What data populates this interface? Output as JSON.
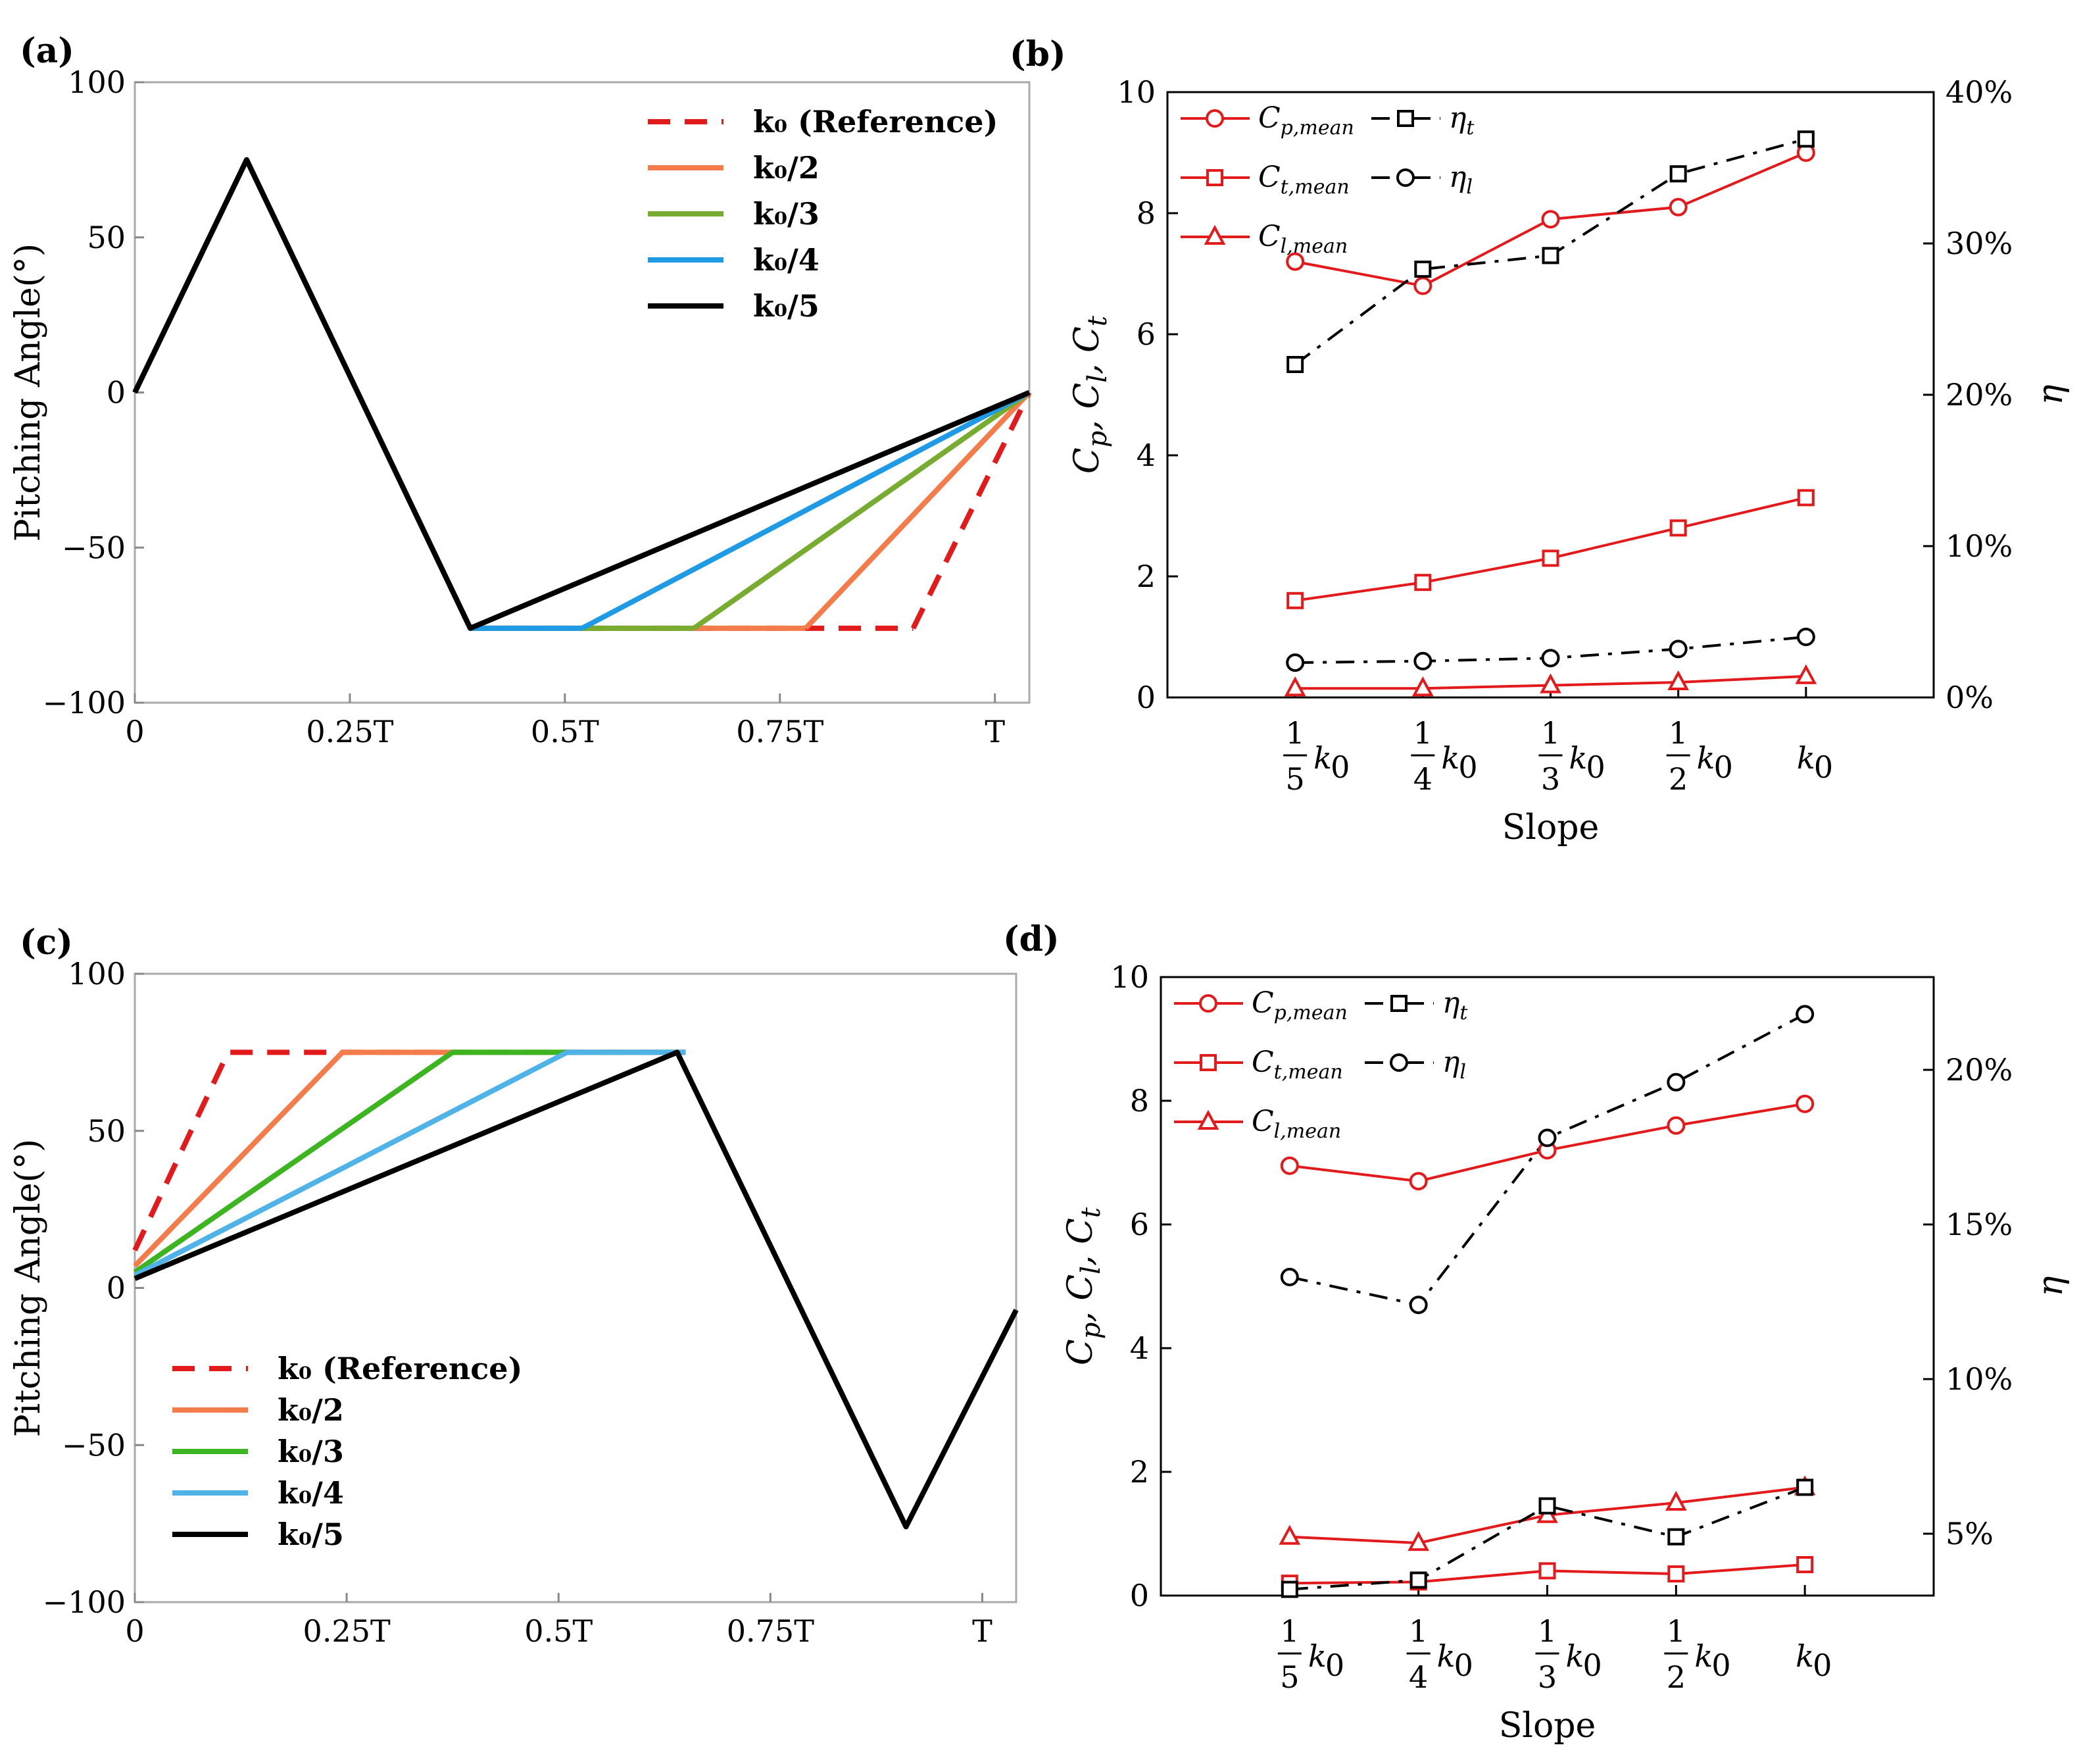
{
  "chart_data": [
    {
      "id": "a",
      "panel_label": "(a)",
      "type": "line",
      "ylabel": "Pitching Angle(°)",
      "xlim": [
        0,
        1.04
      ],
      "ylim": [
        -100,
        100
      ],
      "x_ticks": [
        {
          "v": 0,
          "t": "0"
        },
        {
          "v": 0.25,
          "t": "0.25T"
        },
        {
          "v": 0.5,
          "t": "0.5T"
        },
        {
          "v": 0.75,
          "t": "0.75T"
        },
        {
          "v": 1.0,
          "t": "T"
        }
      ],
      "y_ticks": [
        {
          "v": 100,
          "t": "100"
        },
        {
          "v": 50,
          "t": "50"
        },
        {
          "v": 0,
          "t": "0"
        },
        {
          "v": -50,
          "t": "−50"
        },
        {
          "v": -100,
          "t": "−100"
        }
      ],
      "legend_position": "top-right",
      "series": [
        {
          "name": "k₀ (Reference)",
          "color": "#e31a1c",
          "dash": "dashed",
          "x": [
            0.905,
            1.04
          ],
          "y": [
            -76,
            0
          ]
        },
        {
          "name": "k₀/2",
          "color": "#f47c4a",
          "dash": "solid",
          "x": [
            0.78,
            1.04
          ],
          "y": [
            -76,
            0
          ]
        },
        {
          "name": "k₀/3",
          "color": "#77ac30",
          "dash": "solid",
          "x": [
            0.65,
            1.04
          ],
          "y": [
            -76,
            0
          ]
        },
        {
          "name": "k₀/4",
          "color": "#1f9be6",
          "dash": "solid",
          "x": [
            0.52,
            1.04
          ],
          "y": [
            -76,
            0
          ]
        },
        {
          "name": "k₀/5",
          "color": "#000000",
          "dash": "solid",
          "x": [
            0,
            0.13,
            0.39,
            1.04
          ],
          "y": [
            0,
            75,
            -76,
            0
          ]
        }
      ],
      "extra_segments": [
        {
          "color": "#000000",
          "dash": "solid",
          "x": [
            0,
            0.13,
            0.39
          ],
          "y": [
            0,
            75,
            -76
          ]
        },
        {
          "color": "#e31a1c",
          "dash": "dashed",
          "x": [
            0.39,
            0.905
          ],
          "y": [
            -76,
            -76
          ]
        },
        {
          "color": "#f47c4a",
          "dash": "solid",
          "x": [
            0.39,
            0.78
          ],
          "y": [
            -76,
            -76
          ]
        },
        {
          "color": "#77ac30",
          "dash": "solid",
          "x": [
            0.39,
            0.65
          ],
          "y": [
            -76,
            -76
          ]
        },
        {
          "color": "#1f9be6",
          "dash": "solid",
          "x": [
            0.39,
            0.52
          ],
          "y": [
            -76,
            -76
          ]
        }
      ]
    },
    {
      "id": "b",
      "panel_label": "(b)",
      "type": "line",
      "ylabel": "Cp, Cl, Ct",
      "ylabel_parts": [
        "C",
        "p",
        ", C",
        "l",
        ", C",
        "t"
      ],
      "y2label": "η",
      "xlabel": "Slope",
      "categories": [
        "1/5 k0",
        "1/4 k0",
        "1/3 k0",
        "1/2 k0",
        "k0"
      ],
      "ylim": [
        0,
        10
      ],
      "y_ticks": [
        0,
        2,
        4,
        6,
        8,
        10
      ],
      "y2lim": [
        0,
        40
      ],
      "y2_ticks": [
        {
          "v": 0,
          "t": "0%"
        },
        {
          "v": 10,
          "t": "10%"
        },
        {
          "v": 20,
          "t": "20%"
        },
        {
          "v": 30,
          "t": "30%"
        },
        {
          "v": 40,
          "t": "40%"
        }
      ],
      "legend_position": "top-left",
      "series": [
        {
          "name": "Cp,mean",
          "sym": "C",
          "sub": "p,mean",
          "axis": "left",
          "marker": "circle",
          "color": "#e31a1c",
          "dash": "solid",
          "values": [
            7.2,
            6.8,
            7.9,
            8.1,
            9.0
          ]
        },
        {
          "name": "Ct,mean",
          "sym": "C",
          "sub": "t,mean",
          "axis": "left",
          "marker": "square",
          "color": "#e31a1c",
          "dash": "solid",
          "values": [
            1.6,
            1.9,
            2.3,
            2.8,
            3.3
          ]
        },
        {
          "name": "Cl,mean",
          "sym": "C",
          "sub": "l,mean",
          "axis": "left",
          "marker": "triangle",
          "color": "#e31a1c",
          "dash": "solid",
          "values": [
            0.15,
            0.15,
            0.2,
            0.25,
            0.35
          ]
        },
        {
          "name": "ηt",
          "sym": "η",
          "sub": "t",
          "axis": "right",
          "marker": "square",
          "color": "#000000",
          "dash": "dashdot",
          "values": [
            22,
            28.3,
            29.2,
            34.6,
            36.9
          ]
        },
        {
          "name": "ηl",
          "sym": "η",
          "sub": "l",
          "axis": "right",
          "marker": "circle",
          "color": "#000000",
          "dash": "dashdot",
          "values": [
            2.3,
            2.4,
            2.6,
            3.2,
            4.0
          ]
        }
      ]
    },
    {
      "id": "c",
      "panel_label": "(c)",
      "type": "line",
      "ylabel": "Pitching Angle(°)",
      "xlim": [
        0,
        1.04
      ],
      "ylim": [
        -100,
        100
      ],
      "x_ticks": [
        {
          "v": 0,
          "t": "0"
        },
        {
          "v": 0.25,
          "t": "0.25T"
        },
        {
          "v": 0.5,
          "t": "0.5T"
        },
        {
          "v": 0.75,
          "t": "0.75T"
        },
        {
          "v": 1.0,
          "t": "T"
        }
      ],
      "y_ticks": [
        {
          "v": 100,
          "t": "100"
        },
        {
          "v": 50,
          "t": "50"
        },
        {
          "v": 0,
          "t": "0"
        },
        {
          "v": -50,
          "t": "−50"
        },
        {
          "v": -100,
          "t": "−100"
        }
      ],
      "legend_position": "bottom-left",
      "series": [
        {
          "name": "k₀ (Reference)",
          "color": "#e31a1c",
          "dash": "dashed",
          "x": [
            0,
            0.11,
            0.65
          ],
          "y": [
            12,
            75,
            75
          ]
        },
        {
          "name": "k₀/2",
          "color": "#f47c4a",
          "dash": "solid",
          "x": [
            0,
            0.245,
            0.65
          ],
          "y": [
            7,
            75,
            75
          ]
        },
        {
          "name": "k₀/3",
          "color": "#3cb521",
          "dash": "solid",
          "x": [
            0,
            0.375,
            0.65
          ],
          "y": [
            5,
            75,
            75
          ]
        },
        {
          "name": "k₀/4",
          "color": "#4fb3e8",
          "dash": "solid",
          "x": [
            0,
            0.51,
            0.65
          ],
          "y": [
            4,
            75,
            75
          ]
        },
        {
          "name": "k₀/5",
          "color": "#000000",
          "dash": "solid",
          "x": [
            0,
            0.64,
            0.91,
            1.04
          ],
          "y": [
            3,
            75,
            -76,
            -7
          ]
        }
      ],
      "extra_segments": []
    },
    {
      "id": "d",
      "panel_label": "(d)",
      "type": "line",
      "ylabel": "Cp, Cl, Ct",
      "ylabel_parts": [
        "C",
        "p",
        ", C",
        "l",
        ", C",
        "t"
      ],
      "y2label": "η",
      "xlabel": "Slope",
      "categories": [
        "1/5 k0",
        "1/4 k0",
        "1/3 k0",
        "1/2 k0",
        "k0"
      ],
      "ylim": [
        0,
        10
      ],
      "y_ticks": [
        0,
        2,
        4,
        6,
        8,
        10
      ],
      "y2lim": [
        3,
        23
      ],
      "y2_ticks": [
        {
          "v": 5,
          "t": "5%"
        },
        {
          "v": 10,
          "t": "10%"
        },
        {
          "v": 15,
          "t": "15%"
        },
        {
          "v": 20,
          "t": "20%"
        }
      ],
      "legend_position": "top-left",
      "series": [
        {
          "name": "Cp,mean",
          "sym": "C",
          "sub": "p,mean",
          "axis": "left",
          "marker": "circle",
          "color": "#e31a1c",
          "dash": "solid",
          "values": [
            6.95,
            6.7,
            7.2,
            7.6,
            7.95
          ]
        },
        {
          "name": "Ct,mean",
          "sym": "C",
          "sub": "t,mean",
          "axis": "left",
          "marker": "square",
          "color": "#e31a1c",
          "dash": "solid",
          "values": [
            0.2,
            0.22,
            0.4,
            0.35,
            0.5
          ]
        },
        {
          "name": "Cl,mean",
          "sym": "C",
          "sub": "l,mean",
          "axis": "left",
          "marker": "triangle",
          "color": "#e31a1c",
          "dash": "solid",
          "values": [
            0.95,
            0.85,
            1.3,
            1.5,
            1.75
          ]
        },
        {
          "name": "ηt",
          "sym": "η",
          "sub": "t",
          "axis": "right",
          "marker": "square",
          "color": "#000000",
          "dash": "dashdot",
          "values": [
            3.2,
            3.5,
            5.9,
            4.9,
            6.5
          ]
        },
        {
          "name": "ηl",
          "sym": "η",
          "sub": "l",
          "axis": "right",
          "marker": "circle",
          "color": "#000000",
          "dash": "dashdot",
          "values": [
            13.3,
            12.4,
            17.8,
            19.6,
            21.8
          ]
        }
      ]
    }
  ]
}
